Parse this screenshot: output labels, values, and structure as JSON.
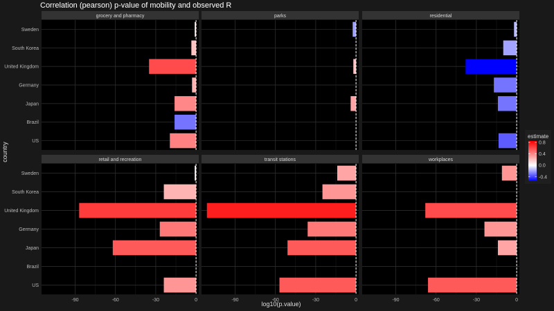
{
  "chart_data": {
    "type": "bar",
    "orientation": "horizontal",
    "title": "Correlation (pearson) p-value of mobility and observed R",
    "xlabel": "log10(p.value)",
    "ylabel": "country",
    "xlim": [
      -115,
      2
    ],
    "x_ticks": [
      -90,
      -60,
      -30,
      0
    ],
    "x_tick_labels": [
      "-90",
      "-60",
      "-30",
      "0"
    ],
    "categories": [
      "Sweden",
      "South Korea",
      "United Kingdom",
      "Germany",
      "Japan",
      "Brazil",
      "US"
    ],
    "reference_line": 0,
    "grid": true,
    "legend": {
      "title": "estimate",
      "position": "right",
      "scale_min": -0.55,
      "scale_max": 0.85,
      "ticks": [
        0.8,
        0.4,
        0.0,
        -0.4
      ],
      "tick_labels": [
        "0.8",
        "0.4",
        "0.0",
        "-0.4"
      ],
      "low_color": "#0000ff",
      "mid_color": "#ffffff",
      "high_color": "#ff0000"
    },
    "facets": [
      {
        "name": "grocery and pharmacy",
        "values": [
          -1,
          -3.5,
          -35,
          -3,
          -16,
          -16,
          -19.5
        ],
        "estimates": [
          0.05,
          0.2,
          0.6,
          0.25,
          0.4,
          -0.3,
          0.42
        ]
      },
      {
        "name": "parks",
        "values": [
          -2.5,
          0,
          -2,
          0,
          -4,
          0,
          0
        ],
        "estimates": [
          -0.2,
          0,
          0.2,
          0,
          0.3,
          0,
          0
        ]
      },
      {
        "name": "residential",
        "values": [
          -2,
          -10,
          -38,
          -17,
          -14,
          0,
          -13.5
        ],
        "estimates": [
          -0.15,
          -0.2,
          -0.6,
          -0.3,
          -0.3,
          0,
          -0.35
        ]
      },
      {
        "name": "retail and recreation",
        "values": [
          -1,
          -24,
          -87,
          -27,
          -62,
          0,
          -24
        ],
        "estimates": [
          0.03,
          0.25,
          0.65,
          0.45,
          0.55,
          0,
          0.35
        ]
      },
      {
        "name": "transit stations",
        "values": [
          -14,
          -25,
          -111,
          -36,
          -51,
          0,
          -57
        ],
        "estimates": [
          0.3,
          0.35,
          0.75,
          0.45,
          0.55,
          0,
          0.55
        ]
      },
      {
        "name": "workplaces",
        "values": [
          -11,
          0,
          -68,
          -24,
          -14,
          0,
          -66
        ],
        "estimates": [
          0.35,
          0,
          0.6,
          0.35,
          0.3,
          0,
          0.55
        ]
      }
    ]
  }
}
